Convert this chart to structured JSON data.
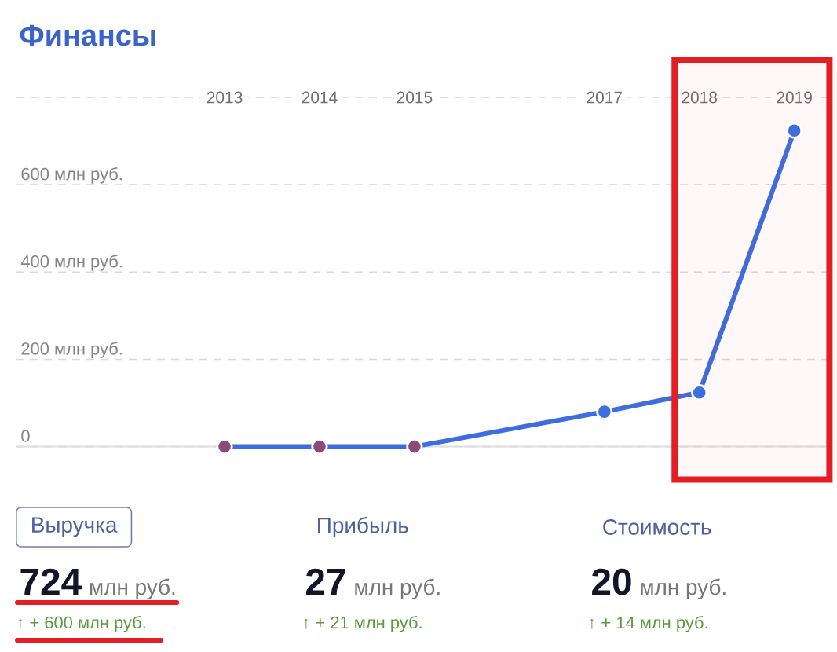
{
  "chart_data": {
    "type": "line",
    "title": "Финансы",
    "x": [
      2013,
      2014,
      2015,
      2017,
      2018,
      2019
    ],
    "values": [
      0,
      0,
      0,
      80,
      124,
      724
    ],
    "color": "#3d6ee0",
    "colors": [
      "#8b4a7c",
      "#8b4a7c",
      "#8b4a7c",
      "#3d6ee0",
      "#3d6ee0",
      "#3d6ee0"
    ],
    "xlim": [
      2010.8,
      2019.4
    ],
    "xticks": [
      2013,
      2014,
      2015,
      2017,
      2018,
      2019
    ],
    "ylim": [
      0,
      800
    ],
    "yticks": [
      0,
      {
        "value": 200,
        "label": "200 млн руб."
      },
      {
        "value": 400,
        "label": "400 млн руб."
      },
      {
        "value": 600,
        "label": "600 млн руб."
      },
      {
        "value": 800,
        "label": null
      }
    ],
    "grid": "y",
    "marker": "circle",
    "line_style": "solid",
    "bands": [
      {
        "axis": "x",
        "from": 2017.74,
        "to": 2019.37,
        "color": "#e31e24"
      }
    ],
    "annotations": [
      "Выручка",
      "724",
      "млн руб.",
      "↑ + 600 млн руб.",
      "Прибыль",
      "27",
      "млн руб.",
      "↑ + 21 млн руб.",
      "Стоимость",
      "20",
      "млн руб.",
      "↑ + 14 млн руб."
    ]
  }
}
